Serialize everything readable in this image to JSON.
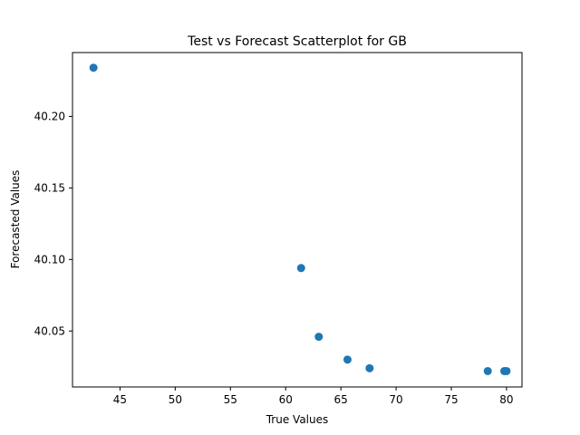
{
  "chart_data": {
    "type": "scatter",
    "title": "Test vs Forecast Scatterplot for GB",
    "xlabel": "True Values",
    "ylabel": "Forecasted Values",
    "xlim": [
      40.7,
      81.4
    ],
    "ylim": [
      40.0109,
      40.2446
    ],
    "xticks": [
      45,
      50,
      55,
      60,
      65,
      70,
      75,
      80
    ],
    "xtick_labels": [
      "45",
      "50",
      "55",
      "60",
      "65",
      "70",
      "75",
      "80"
    ],
    "yticks": [
      40.05,
      40.1,
      40.15,
      40.2
    ],
    "ytick_labels": [
      "40.05",
      "40.10",
      "40.15",
      "40.20"
    ],
    "grid": false,
    "legend": "none",
    "marker_color": "#1f77b4",
    "points": [
      {
        "x": 42.6,
        "y": 40.234
      },
      {
        "x": 61.4,
        "y": 40.094
      },
      {
        "x": 63.0,
        "y": 40.046
      },
      {
        "x": 65.6,
        "y": 40.03
      },
      {
        "x": 67.6,
        "y": 40.024
      },
      {
        "x": 78.3,
        "y": 40.022
      },
      {
        "x": 79.8,
        "y": 40.022
      },
      {
        "x": 80.0,
        "y": 40.022
      }
    ]
  }
}
